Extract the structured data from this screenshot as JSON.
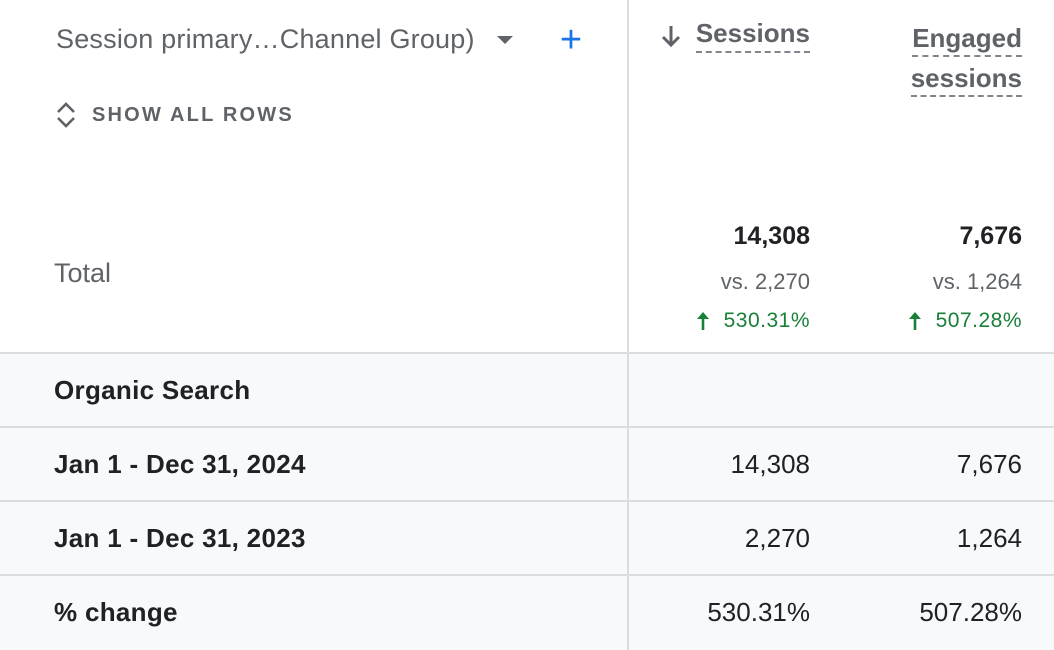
{
  "header": {
    "dimension_label": "Session primary…Channel Group)",
    "add_label": "+",
    "show_rows_label": "SHOW ALL ROWS",
    "columns": [
      {
        "label": "Sessions",
        "sorted": "descending"
      },
      {
        "label_line1": "Engaged",
        "label_line2": "sessions"
      }
    ]
  },
  "totals": {
    "label": "Total",
    "sessions": {
      "value": "14,308",
      "vs": "vs. 2,270",
      "change": "530.31%"
    },
    "engaged": {
      "value": "7,676",
      "vs": "vs. 1,264",
      "change": "507.28%"
    }
  },
  "rows": [
    {
      "label": "Organic Search",
      "sessions": "",
      "engaged": ""
    },
    {
      "label": "Jan 1 - Dec 31, 2024",
      "sessions": "14,308",
      "engaged": "7,676"
    },
    {
      "label": "Jan 1 - Dec 31, 2023",
      "sessions": "2,270",
      "engaged": "1,264"
    },
    {
      "label": "% change",
      "sessions": "530.31%",
      "engaged": "507.28%"
    }
  ],
  "colors": {
    "accent": "#1a73e8",
    "positive": "#188038",
    "row_bg": "#f8f9fa",
    "border": "#dadce0"
  }
}
